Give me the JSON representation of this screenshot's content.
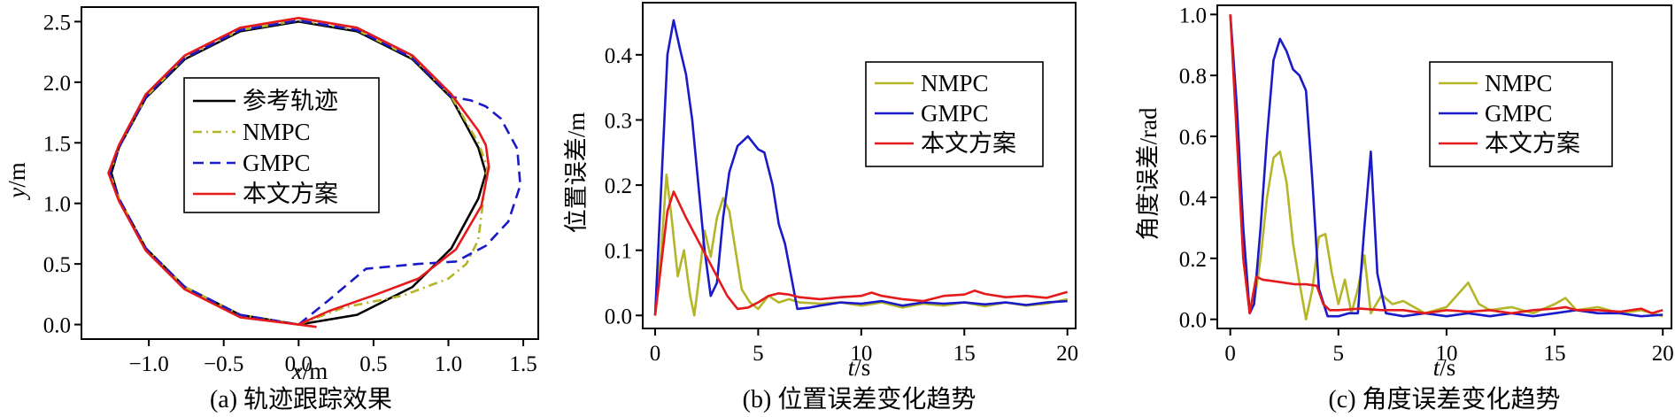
{
  "colors": {
    "reference": "#000000",
    "nmpc": "#b5b528",
    "gmpc": "#1a1ac8",
    "ours": "#e41a1c"
  },
  "chart_data": [
    {
      "type": "line",
      "caption": "(a) 轨迹跟踪效果",
      "xlabel": "x/m",
      "ylabel": "y/m",
      "xlim": [
        -1.45,
        1.6
      ],
      "ylim": [
        -0.12,
        2.62
      ],
      "xticks": [
        -1.0,
        -0.5,
        0.0,
        0.5,
        1.0,
        1.5
      ],
      "xtick_labels": [
        "−1.0",
        "−0.5",
        "0.0",
        "0.5",
        "1.0",
        "1.5"
      ],
      "yticks": [
        0.0,
        0.5,
        1.0,
        1.5,
        2.0,
        2.5
      ],
      "ytick_labels": [
        "0.0",
        "0.5",
        "1.0",
        "1.5",
        "2.0",
        "2.5"
      ],
      "legend_position": "center",
      "series": [
        {
          "name": "参考轨迹",
          "color_key": "reference",
          "dash": "solid",
          "x": [
            0.0,
            0.39,
            0.76,
            1.02,
            1.2,
            1.25,
            1.2,
            1.02,
            0.76,
            0.39,
            0.0,
            -0.39,
            -0.76,
            -1.02,
            -1.2,
            -1.25,
            -1.2,
            -1.02,
            -0.76,
            -0.39,
            0.0
          ],
          "y": [
            0.0,
            0.08,
            0.31,
            0.63,
            1.04,
            1.25,
            1.46,
            1.87,
            2.19,
            2.42,
            2.5,
            2.42,
            2.19,
            1.87,
            1.46,
            1.25,
            1.04,
            0.63,
            0.31,
            0.08,
            0.0
          ]
        },
        {
          "name": "NMPC",
          "color_key": "nmpc",
          "dash": "dashdot",
          "x": [
            0.0,
            0.3,
            0.7,
            1.0,
            1.12,
            1.2,
            1.23,
            1.26,
            1.2,
            1.02,
            0.76,
            0.39,
            0.0,
            -0.39,
            -0.76,
            -1.02,
            -1.2,
            -1.26,
            -1.2,
            -1.02,
            -0.76,
            -0.39,
            0.0
          ],
          "y": [
            0.0,
            0.14,
            0.24,
            0.38,
            0.5,
            0.7,
            1.0,
            1.3,
            1.5,
            1.88,
            2.2,
            2.43,
            2.51,
            2.43,
            2.2,
            1.88,
            1.46,
            1.25,
            1.04,
            0.63,
            0.31,
            0.08,
            0.0
          ]
        },
        {
          "name": "GMPC",
          "color_key": "gmpc",
          "dash": "dashed",
          "x": [
            0.0,
            0.2,
            0.45,
            0.8,
            1.05,
            1.25,
            1.4,
            1.48,
            1.46,
            1.35,
            1.25,
            1.15,
            1.02,
            0.76,
            0.39,
            0.0,
            -0.39,
            -0.76,
            -1.02,
            -1.2,
            -1.26,
            -1.2,
            -1.02,
            -0.76,
            -0.39,
            0.0
          ],
          "y": [
            0.0,
            0.2,
            0.46,
            0.5,
            0.52,
            0.65,
            0.85,
            1.15,
            1.45,
            1.7,
            1.8,
            1.85,
            1.88,
            2.2,
            2.43,
            2.51,
            2.43,
            2.2,
            1.88,
            1.46,
            1.25,
            1.04,
            0.63,
            0.31,
            0.08,
            0.0
          ]
        },
        {
          "name": "本文方案",
          "color_key": "ours",
          "dash": "solid",
          "x": [
            0.12,
            0.0,
            0.2,
            0.5,
            0.8,
            1.05,
            1.22,
            1.27,
            1.25,
            1.2,
            1.02,
            0.76,
            0.39,
            0.0,
            -0.39,
            -0.76,
            -1.02,
            -1.2,
            -1.27,
            -1.2,
            -1.02,
            -0.76,
            -0.39,
            0.0
          ],
          "y": [
            -0.02,
            0.0,
            0.11,
            0.24,
            0.38,
            0.62,
            0.98,
            1.3,
            1.48,
            1.6,
            1.9,
            2.22,
            2.45,
            2.53,
            2.45,
            2.22,
            1.9,
            1.48,
            1.25,
            1.02,
            0.61,
            0.29,
            0.06,
            0.0
          ]
        }
      ]
    },
    {
      "type": "line",
      "caption": "(b) 位置误差变化趋势",
      "xlabel": "t/s",
      "ylabel": "位置误差/m",
      "xlim": [
        -0.6,
        20.4
      ],
      "ylim": [
        -0.02,
        0.48
      ],
      "xticks": [
        0,
        5,
        10,
        15,
        20
      ],
      "xtick_labels": [
        "0",
        "5",
        "10",
        "15",
        "20"
      ],
      "yticks": [
        0.0,
        0.1,
        0.2,
        0.3,
        0.4
      ],
      "ytick_labels": [
        "0.0",
        "0.1",
        "0.2",
        "0.3",
        "0.4"
      ],
      "legend_position": "top-right",
      "series": [
        {
          "name": "NMPC",
          "color_key": "nmpc",
          "x": [
            0,
            0.3,
            0.55,
            0.8,
            1.1,
            1.4,
            1.7,
            1.9,
            2.1,
            2.4,
            2.7,
            3.0,
            3.3,
            3.6,
            3.9,
            4.2,
            4.6,
            5.0,
            5.5,
            6.0,
            6.5,
            7.0,
            8,
            9,
            10,
            11,
            12,
            13,
            14,
            15,
            16,
            17,
            18,
            19,
            20
          ],
          "y": [
            0,
            0.1,
            0.216,
            0.15,
            0.06,
            0.1,
            0.03,
            0.0,
            0.05,
            0.13,
            0.09,
            0.15,
            0.18,
            0.16,
            0.1,
            0.04,
            0.02,
            0.01,
            0.03,
            0.02,
            0.025,
            0.02,
            0.018,
            0.02,
            0.015,
            0.02,
            0.012,
            0.018,
            0.015,
            0.02,
            0.014,
            0.02,
            0.015,
            0.018,
            0.025
          ]
        },
        {
          "name": "GMPC",
          "color_key": "gmpc",
          "x": [
            0,
            0.3,
            0.6,
            0.9,
            1.2,
            1.5,
            1.8,
            2.1,
            2.4,
            2.7,
            3.0,
            3.3,
            3.6,
            4.0,
            4.5,
            5.0,
            5.3,
            5.7,
            6.0,
            6.3,
            6.6,
            6.9,
            7.5,
            8,
            9,
            10,
            11,
            12,
            13,
            14,
            15,
            16,
            17,
            18,
            19,
            20
          ],
          "y": [
            0,
            0.2,
            0.4,
            0.453,
            0.41,
            0.37,
            0.3,
            0.2,
            0.1,
            0.03,
            0.05,
            0.15,
            0.22,
            0.26,
            0.275,
            0.255,
            0.25,
            0.2,
            0.14,
            0.11,
            0.06,
            0.01,
            0.012,
            0.015,
            0.02,
            0.018,
            0.022,
            0.015,
            0.02,
            0.018,
            0.02,
            0.017,
            0.02,
            0.016,
            0.02,
            0.022
          ]
        },
        {
          "name": "本文方案",
          "color_key": "ours",
          "x": [
            0,
            0.3,
            0.6,
            0.9,
            1.2,
            1.5,
            2.0,
            2.5,
            3.0,
            3.5,
            4.0,
            4.5,
            5.0,
            5.5,
            6.0,
            6.5,
            7.0,
            8,
            9,
            10,
            10.5,
            11,
            12,
            13,
            14,
            15,
            15.5,
            16,
            17,
            18,
            19,
            20
          ],
          "y": [
            0,
            0.08,
            0.16,
            0.19,
            0.17,
            0.15,
            0.12,
            0.09,
            0.06,
            0.03,
            0.01,
            0.012,
            0.02,
            0.03,
            0.034,
            0.032,
            0.028,
            0.025,
            0.028,
            0.03,
            0.035,
            0.03,
            0.025,
            0.022,
            0.03,
            0.032,
            0.038,
            0.033,
            0.028,
            0.03,
            0.027,
            0.036
          ]
        }
      ]
    },
    {
      "type": "line",
      "caption": "(c) 角度误差变化趋势",
      "xlabel": "t/s",
      "ylabel": "角度误差/rad",
      "xlim": [
        -0.6,
        20.4
      ],
      "ylim": [
        -0.03,
        1.03
      ],
      "xticks": [
        0,
        5,
        10,
        15,
        20
      ],
      "xtick_labels": [
        "0",
        "5",
        "10",
        "15",
        "20"
      ],
      "yticks": [
        0.0,
        0.2,
        0.4,
        0.6,
        0.8,
        1.0
      ],
      "ytick_labels": [
        "0.0",
        "0.2",
        "0.4",
        "0.6",
        "0.8",
        "1.0"
      ],
      "legend_position": "top-right",
      "series": [
        {
          "name": "NMPC",
          "color_key": "nmpc",
          "x": [
            0,
            0.3,
            0.6,
            0.9,
            1.1,
            1.4,
            1.7,
            2.0,
            2.3,
            2.6,
            2.9,
            3.2,
            3.5,
            3.8,
            4.1,
            4.4,
            4.7,
            5.0,
            5.3,
            5.6,
            5.9,
            6.2,
            6.5,
            7,
            7.5,
            8,
            9,
            10,
            10.5,
            11,
            11.5,
            12,
            13,
            14,
            15,
            15.5,
            16,
            17,
            18,
            19,
            20
          ],
          "y": [
            1.0,
            0.7,
            0.3,
            0.02,
            0.05,
            0.2,
            0.4,
            0.53,
            0.55,
            0.45,
            0.25,
            0.12,
            0.0,
            0.1,
            0.27,
            0.28,
            0.15,
            0.05,
            0.13,
            0.02,
            0.1,
            0.21,
            0.02,
            0.08,
            0.05,
            0.06,
            0.02,
            0.04,
            0.08,
            0.12,
            0.05,
            0.03,
            0.04,
            0.02,
            0.05,
            0.07,
            0.03,
            0.04,
            0.02,
            0.03,
            0.01
          ]
        },
        {
          "name": "GMPC",
          "color_key": "gmpc",
          "x": [
            0,
            0.3,
            0.6,
            0.9,
            1.1,
            1.4,
            1.7,
            2.0,
            2.3,
            2.6,
            2.9,
            3.2,
            3.5,
            3.8,
            4.1,
            4.5,
            5.0,
            5.5,
            5.9,
            6.2,
            6.5,
            6.8,
            7.2,
            8,
            9,
            10,
            11,
            12,
            13,
            14,
            15,
            16,
            17,
            18,
            19,
            20
          ],
          "y": [
            1.0,
            0.7,
            0.3,
            0.02,
            0.05,
            0.3,
            0.6,
            0.85,
            0.92,
            0.88,
            0.82,
            0.8,
            0.75,
            0.45,
            0.1,
            0.01,
            0.01,
            0.02,
            0.02,
            0.3,
            0.55,
            0.15,
            0.02,
            0.01,
            0.02,
            0.01,
            0.02,
            0.01,
            0.02,
            0.01,
            0.02,
            0.03,
            0.02,
            0.02,
            0.01,
            0.015
          ]
        },
        {
          "name": "本文方案",
          "color_key": "ours",
          "x": [
            0,
            0.3,
            0.6,
            0.9,
            1.2,
            1.5,
            2.0,
            2.5,
            3.0,
            3.5,
            4.0,
            4.3,
            4.6,
            5.0,
            6,
            7,
            8,
            9,
            10,
            11,
            12,
            13,
            14,
            15,
            15.5,
            16,
            17,
            18,
            19,
            19.5,
            20
          ],
          "y": [
            1.0,
            0.6,
            0.2,
            0.02,
            0.14,
            0.13,
            0.125,
            0.12,
            0.115,
            0.115,
            0.11,
            0.05,
            0.03,
            0.03,
            0.035,
            0.03,
            0.03,
            0.02,
            0.03,
            0.025,
            0.03,
            0.02,
            0.03,
            0.035,
            0.04,
            0.03,
            0.03,
            0.025,
            0.035,
            0.02,
            0.03
          ]
        }
      ]
    }
  ]
}
